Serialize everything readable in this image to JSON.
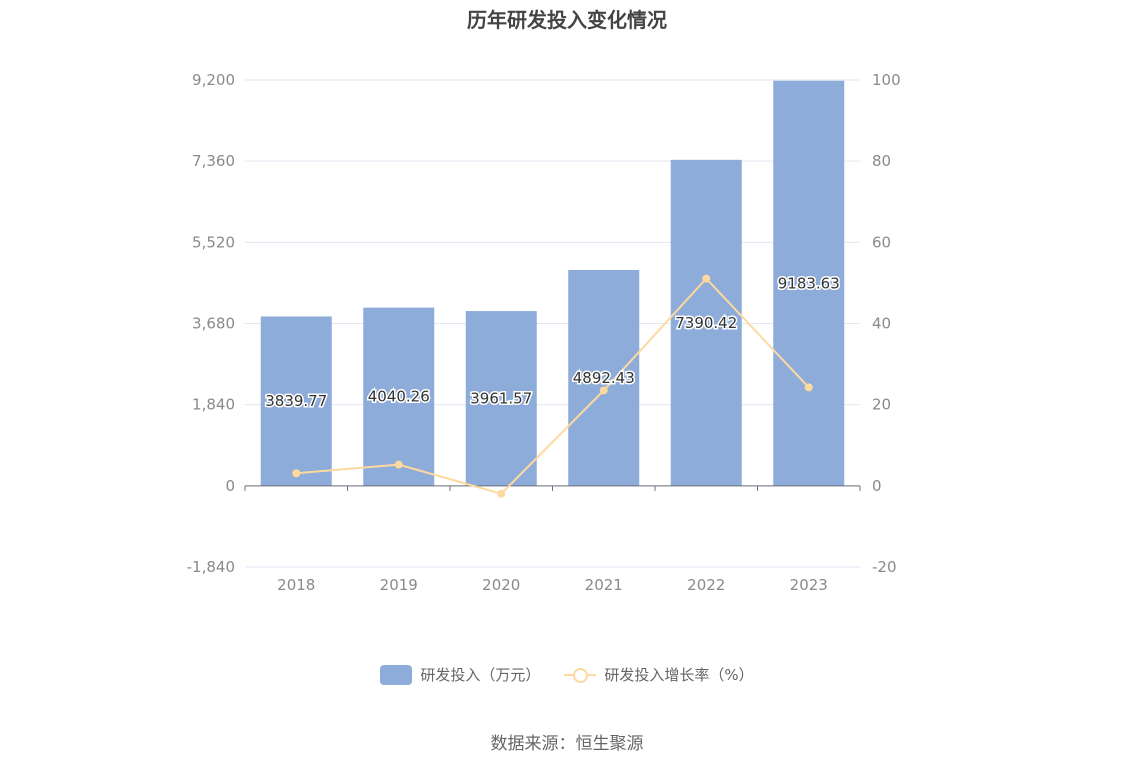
{
  "title": "历年研发投入变化情况",
  "source": "数据来源：恒生聚源",
  "colors": {
    "bar": "#8eacd9",
    "line": "#fdd9a0",
    "grid": "#e3e6f3",
    "axis": "#6e7079"
  },
  "legend": {
    "bar_label": "研发投入（万元）",
    "line_label": "研发投入增长率（%）"
  },
  "chart_data": {
    "type": "bar",
    "categories": [
      "2018",
      "2019",
      "2020",
      "2021",
      "2022",
      "2023"
    ],
    "series": [
      {
        "name": "研发投入（万元）",
        "type": "bar",
        "axis": "left",
        "values": [
          3839.77,
          4040.26,
          3961.57,
          4892.43,
          7390.42,
          9183.63
        ],
        "labels": [
          "3839.77",
          "4040.26",
          "3961.57",
          "4892.43",
          "7390.42",
          "9183.63"
        ]
      },
      {
        "name": "研发投入增长率（%）",
        "type": "line",
        "axis": "right",
        "values": [
          3.1,
          5.22,
          -1.95,
          23.5,
          51.06,
          24.26
        ]
      }
    ],
    "y_left": {
      "min": -1840,
      "max": 9200,
      "ticks": [
        "9,200",
        "7,360",
        "5,520",
        "3,680",
        "1,840",
        "0",
        "-1,840"
      ]
    },
    "y_right": {
      "min": -20,
      "max": 100,
      "ticks": [
        "100",
        "80",
        "60",
        "40",
        "20",
        "0",
        "-20"
      ]
    },
    "grid": true,
    "legend_position": "bottom"
  }
}
